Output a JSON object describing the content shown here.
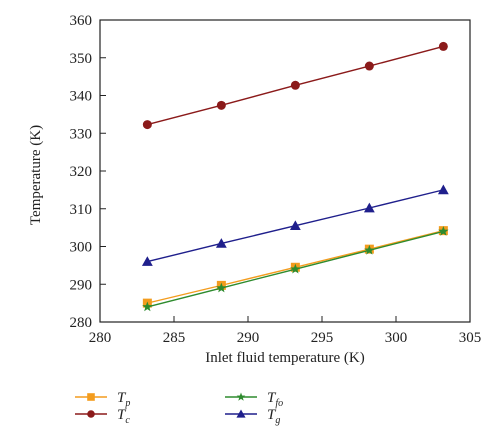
{
  "chart_data": {
    "type": "line",
    "xlabel": "Inlet fluid temperature (K)",
    "ylabel": "Temperature (K)",
    "xlim": [
      280,
      305
    ],
    "ylim": [
      280,
      360
    ],
    "xticks": [
      "280",
      "285",
      "290",
      "295",
      "300",
      "305"
    ],
    "yticks": [
      "280",
      "290",
      "300",
      "310",
      "320",
      "330",
      "340",
      "350",
      "360"
    ],
    "x": [
      283.2,
      288.2,
      293.2,
      298.2,
      303.2
    ],
    "grid": false,
    "legend_position": "bottom",
    "series": [
      {
        "name": "T",
        "subscript": "p",
        "color": "#F39C1E",
        "marker": "square",
        "values": [
          285.0,
          289.7,
          294.5,
          299.3,
          304.2
        ]
      },
      {
        "name": "T",
        "subscript": "c",
        "color": "#8B1A1A",
        "marker": "circle",
        "values": [
          332.3,
          337.4,
          342.7,
          347.8,
          353.0
        ]
      },
      {
        "name": "T",
        "subscript": "fo",
        "color": "#2E8B2E",
        "marker": "star",
        "values": [
          284.0,
          289.0,
          294.0,
          299.0,
          304.0
        ]
      },
      {
        "name": "T",
        "subscript": "g",
        "color": "#1F1F8C",
        "marker": "triangle",
        "values": [
          296.0,
          300.8,
          305.5,
          310.2,
          315.0
        ]
      }
    ]
  }
}
